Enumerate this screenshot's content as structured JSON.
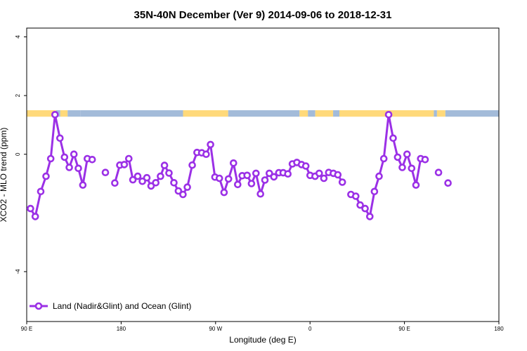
{
  "chart_data": {
    "type": "line",
    "title": "35N-40N December (Ver 9)   2014-09-06 to 2018-12-31",
    "xlabel": "Longitude (deg E)",
    "ylabel": "XCO2 - MLO trend (ppm)",
    "xlim": [
      90,
      540
    ],
    "ylim": [
      -5.7,
      4.3
    ],
    "x_ticks": [
      {
        "value": 90,
        "label": "90 E"
      },
      {
        "value": 180,
        "label": "180"
      },
      {
        "value": 270,
        "label": "90 W"
      },
      {
        "value": 360,
        "label": "0"
      },
      {
        "value": 450,
        "label": "90 E"
      },
      {
        "value": 540,
        "label": "180"
      }
    ],
    "y_ticks": [
      {
        "value": 4,
        "label": "4"
      },
      {
        "value": 2,
        "label": "2"
      },
      {
        "value": 0,
        "label": "0"
      },
      {
        "value": -4,
        "label": "-4"
      }
    ],
    "grid": false,
    "legend": {
      "position": "bottom-left"
    },
    "colors": {
      "series": "#9b30e6",
      "land": "#ffd97a",
      "ocean": "#a3bbd9"
    },
    "land_ocean_band": {
      "y_range": [
        1.28,
        1.5
      ],
      "segments": [
        {
          "from": 90,
          "to": 118,
          "type": "land"
        },
        {
          "from": 118,
          "to": 122,
          "type": "ocean"
        },
        {
          "from": 122,
          "to": 129,
          "type": "land"
        },
        {
          "from": 129,
          "to": 141,
          "type": "ocean"
        },
        {
          "from": 141,
          "to": 239,
          "type": "ocean"
        },
        {
          "from": 239,
          "to": 282,
          "type": "land"
        },
        {
          "from": 282,
          "to": 350,
          "type": "ocean"
        },
        {
          "from": 350,
          "to": 358,
          "type": "land"
        },
        {
          "from": 358,
          "to": 365,
          "type": "ocean"
        },
        {
          "from": 365,
          "to": 382,
          "type": "land"
        },
        {
          "from": 382,
          "to": 388,
          "type": "ocean"
        },
        {
          "from": 388,
          "to": 478,
          "type": "land"
        },
        {
          "from": 478,
          "to": 481,
          "type": "ocean"
        },
        {
          "from": 481,
          "to": 489,
          "type": "land"
        },
        {
          "from": 489,
          "to": 540,
          "type": "ocean"
        }
      ]
    },
    "series": [
      {
        "name": "Land (Nadir&Glint) and Ocean (Glint)",
        "points": [
          [
            93.6,
            -1.85
          ],
          [
            98.2,
            -2.12
          ],
          [
            103.4,
            -1.27
          ],
          [
            108.4,
            -0.75
          ],
          [
            112.9,
            -0.15
          ],
          [
            117.0,
            1.35
          ],
          [
            121.7,
            0.55
          ],
          [
            126.0,
            -0.1
          ],
          [
            130.6,
            -0.45
          ],
          [
            135.0,
            0.0
          ],
          [
            139.2,
            -0.48
          ],
          [
            143.5,
            -1.05
          ],
          [
            147.8,
            -0.15
          ],
          [
            152.4,
            -0.18
          ],
          [
            165.0,
            -0.62
          ],
          [
            174.0,
            -0.98
          ],
          [
            178.7,
            -0.37
          ],
          [
            183.0,
            -0.35
          ],
          [
            187.3,
            -0.15
          ],
          [
            191.2,
            -0.87
          ],
          [
            195.8,
            -0.75
          ],
          [
            200.2,
            -0.92
          ],
          [
            204.5,
            -0.8
          ],
          [
            208.5,
            -1.08
          ],
          [
            213.0,
            -0.97
          ],
          [
            217.5,
            -0.75
          ],
          [
            221.3,
            -0.38
          ],
          [
            225.6,
            -0.64
          ],
          [
            230.3,
            -0.97
          ],
          [
            234.6,
            -1.25
          ],
          [
            238.9,
            -1.37
          ],
          [
            243.1,
            -1.12
          ],
          [
            247.8,
            -0.37
          ],
          [
            252.3,
            0.06
          ],
          [
            256.8,
            0.05
          ],
          [
            261.0,
            0.0
          ],
          [
            265.2,
            0.33
          ],
          [
            269.4,
            -0.78
          ],
          [
            273.6,
            -0.82
          ],
          [
            278.1,
            -1.3
          ],
          [
            282.3,
            -0.84
          ],
          [
            287.1,
            -0.3
          ],
          [
            291.1,
            -1.03
          ],
          [
            295.4,
            -0.73
          ],
          [
            300.1,
            -0.72
          ],
          [
            304.2,
            -1.0
          ],
          [
            308.5,
            -0.65
          ],
          [
            312.8,
            -1.35
          ],
          [
            317.0,
            -0.88
          ],
          [
            321.2,
            -0.65
          ],
          [
            325.6,
            -0.77
          ],
          [
            330.3,
            -0.63
          ],
          [
            334.4,
            -0.63
          ],
          [
            338.9,
            -0.67
          ],
          [
            343.2,
            -0.33
          ],
          [
            347.5,
            -0.28
          ],
          [
            351.9,
            -0.35
          ],
          [
            356.0,
            -0.4
          ],
          [
            360.1,
            -0.72
          ],
          [
            364.8,
            -0.75
          ],
          [
            368.8,
            -0.65
          ],
          [
            373.2,
            -0.82
          ],
          [
            377.8,
            -0.62
          ],
          [
            382.2,
            -0.65
          ],
          [
            386.5,
            -0.7
          ],
          [
            390.8,
            -0.95
          ],
          [
            399.0,
            -1.37
          ],
          [
            403.6,
            -1.43
          ],
          [
            407.8,
            -1.73
          ],
          [
            412.5,
            -1.85
          ],
          [
            417.0,
            -2.12
          ],
          [
            421.4,
            -1.27
          ],
          [
            425.8,
            -0.75
          ],
          [
            430.3,
            -0.15
          ],
          [
            434.9,
            1.35
          ],
          [
            439.2,
            0.55
          ],
          [
            443.5,
            -0.1
          ],
          [
            447.9,
            -0.45
          ],
          [
            452.5,
            0.0
          ],
          [
            456.8,
            -0.48
          ],
          [
            461.0,
            -1.05
          ],
          [
            465.5,
            -0.15
          ],
          [
            469.7,
            -0.18
          ],
          [
            482.5,
            -0.62
          ],
          [
            491.5,
            -0.98
          ]
        ]
      }
    ]
  }
}
